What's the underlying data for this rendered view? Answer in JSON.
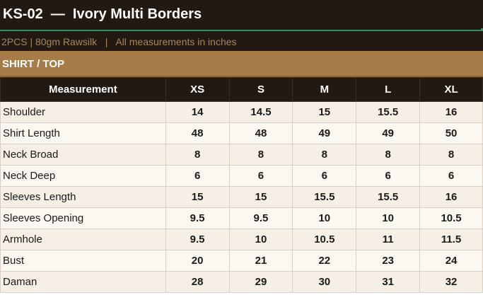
{
  "header": {
    "title": "KS-02  —  Ivory Multi Borders",
    "subtitle": "2PCS | 80gm Rawsilk   |   All measurements in inches"
  },
  "section": {
    "label": "SHIRT / TOP"
  },
  "table": {
    "columns": [
      "Measurement",
      "XS",
      "S",
      "M",
      "L",
      "XL"
    ],
    "rows": [
      {
        "label": "Shoulder",
        "values": [
          "14",
          "14.5",
          "15",
          "15.5",
          "16"
        ]
      },
      {
        "label": "Shirt Length",
        "values": [
          "48",
          "48",
          "49",
          "49",
          "50"
        ]
      },
      {
        "label": "Neck Broad",
        "values": [
          "8",
          "8",
          "8",
          "8",
          "8"
        ]
      },
      {
        "label": "Neck Deep",
        "values": [
          "6",
          "6",
          "6",
          "6",
          "6"
        ]
      },
      {
        "label": "Sleeves Length",
        "values": [
          "15",
          "15",
          "15.5",
          "15.5",
          "16"
        ]
      },
      {
        "label": "Sleeves Opening",
        "values": [
          "9.5",
          "9.5",
          "10",
          "10",
          "10.5"
        ]
      },
      {
        "label": "Armhole",
        "values": [
          "9.5",
          "10",
          "10.5",
          "11",
          "11.5"
        ]
      },
      {
        "label": "Bust",
        "values": [
          "20",
          "21",
          "22",
          "23",
          "24"
        ]
      },
      {
        "label": "Daman",
        "values": [
          "28",
          "29",
          "30",
          "31",
          "32"
        ]
      }
    ]
  },
  "colors": {
    "header_bg": "#211912",
    "subtitle_text": "#a78758",
    "section_bg": "#a67c48",
    "row_odd": "#f5efe5",
    "row_even": "#fbf8f1",
    "accent_line": "#3a8f6a"
  }
}
